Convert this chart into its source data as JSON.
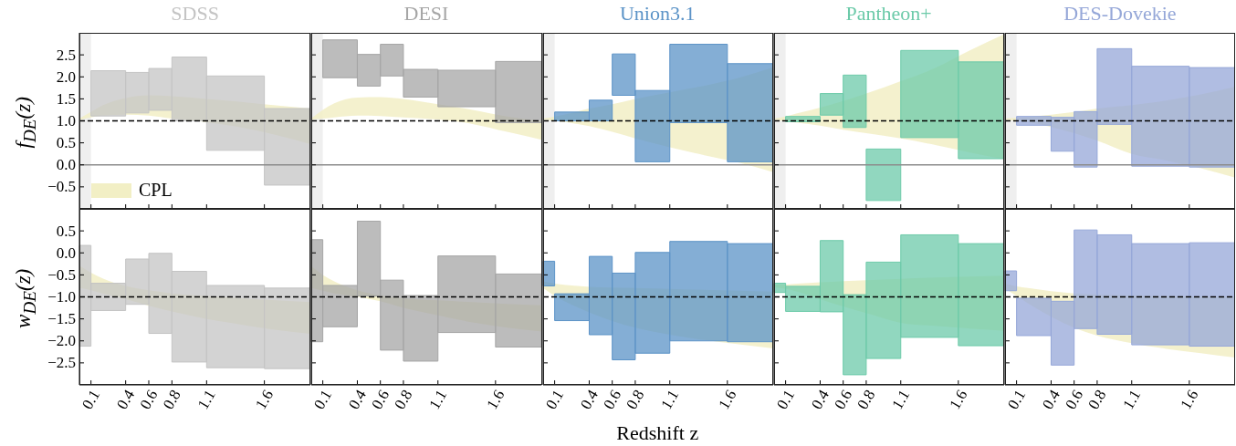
{
  "chart_data": [
    {
      "type": "histogram",
      "title": "SDSS",
      "ylabel": "f$_{DE}$(z)",
      "xlim": [
        0,
        2
      ],
      "xticks": [
        0.1,
        0.4,
        0.6,
        0.8,
        1.1,
        1.6
      ],
      "ylim": [
        -1,
        3
      ],
      "yticks": [
        {
          "value": -0.5,
          "label": "−0.5"
        },
        {
          "value": 0,
          "label": "0.0"
        },
        0.5,
        {
          "value": 1,
          "label": "1.0"
        },
        1.5,
        {
          "value": 2,
          "label": "2.0"
        },
        2.5
      ],
      "tick_labels": "y",
      "legend": "bottom left",
      "bands": [
        {
          "axis": "x",
          "from": 0,
          "to": 0.1,
          "color": "#efefef"
        }
      ],
      "ref_lines": [
        {
          "axis": "y",
          "value": 1,
          "color": "#000000",
          "line_style": "dashed"
        },
        {
          "axis": "y",
          "value": 0,
          "color": "#8c8c8c",
          "line_style": "solid"
        }
      ],
      "series": [
        {
          "type": "area",
          "name": "CPL",
          "color": "#f2efc5",
          "x": [
            0,
            0.1,
            0.2,
            0.4,
            0.6,
            0.8,
            1.1,
            1.4,
            1.7,
            2.0
          ],
          "values": [
            null,
            null,
            null,
            null,
            null,
            null,
            null,
            null,
            null,
            null
          ],
          "lower": [
            1.02,
            1.08,
            1.12,
            1.14,
            1.12,
            1.05,
            0.97,
            0.85,
            0.68,
            0.47
          ],
          "upper": [
            1.05,
            1.2,
            1.35,
            1.52,
            1.58,
            1.56,
            1.5,
            1.43,
            1.35,
            1.28
          ]
        },
        {
          "color": "#c4c4c4",
          "bins": [
            0.1,
            0.4,
            0.6,
            0.8,
            1.1,
            1.6,
            2.0
          ],
          "base": [
            1.11,
            1.18,
            1.24,
            1.0,
            0.33,
            -0.46
          ],
          "values": [
            1.03,
            0.92,
            0.95,
            1.45,
            1.69,
            1.74
          ]
        }
      ]
    },
    {
      "type": "histogram",
      "title": "DESI",
      "xlim": [
        0,
        2
      ],
      "xticks": [
        0.1,
        0.4,
        0.6,
        0.8,
        1.1,
        1.6
      ],
      "ylim": [
        -1,
        3
      ],
      "yticks": [
        -0.5,
        0,
        0.5,
        1,
        1.5,
        2,
        2.5
      ],
      "tick_labels": false,
      "bands": [
        {
          "axis": "x",
          "from": 0,
          "to": 0.1,
          "color": "#efefef"
        }
      ],
      "ref_lines": [
        {
          "axis": "y",
          "value": 1,
          "color": "#000000",
          "line_style": "dashed"
        },
        {
          "axis": "y",
          "value": 0,
          "color": "#8c8c8c",
          "line_style": "solid"
        }
      ],
      "series": [
        {
          "type": "area",
          "color": "#f2efc5",
          "x": [
            0,
            0.1,
            0.2,
            0.4,
            0.6,
            0.8,
            1.1,
            1.4,
            1.7,
            2.0
          ],
          "values": [
            null,
            null,
            null,
            null,
            null,
            null,
            null,
            null,
            null,
            null
          ],
          "lower": [
            1.03,
            1.05,
            1.08,
            1.12,
            1.11,
            1.08,
            1.03,
            0.93,
            0.75,
            0.57
          ],
          "upper": [
            1.05,
            1.25,
            1.4,
            1.53,
            1.54,
            1.5,
            1.38,
            1.25,
            1.1,
            1.0
          ]
        },
        {
          "color": "#a6a6a6",
          "bins": [
            0.1,
            0.4,
            0.6,
            0.8,
            1.1,
            1.6,
            2.0
          ],
          "base": [
            1.98,
            1.79,
            2.02,
            1.54,
            1.32,
            0.96
          ],
          "values": [
            0.86,
            0.72,
            0.72,
            0.63,
            0.83,
            1.39
          ]
        }
      ]
    },
    {
      "type": "histogram",
      "title": "Union3.1",
      "xlim": [
        0,
        2
      ],
      "xticks": [
        0.1,
        0.4,
        0.6,
        0.8,
        1.1,
        1.6
      ],
      "ylim": [
        -1,
        3
      ],
      "yticks": [
        -0.5,
        0,
        0.5,
        1,
        1.5,
        2,
        2.5
      ],
      "tick_labels": false,
      "bands": [
        {
          "axis": "x",
          "from": 0,
          "to": 0.1,
          "color": "#efefef"
        }
      ],
      "ref_lines": [
        {
          "axis": "y",
          "value": 1,
          "color": "#000000",
          "line_style": "dashed"
        },
        {
          "axis": "y",
          "value": 0,
          "color": "#8c8c8c",
          "line_style": "solid"
        }
      ],
      "series": [
        {
          "type": "area",
          "color": "#f2efc5",
          "x": [
            0,
            0.1,
            0.2,
            0.4,
            0.6,
            0.8,
            1.1,
            1.4,
            1.7,
            2.0
          ],
          "values": [
            null,
            null,
            null,
            null,
            null,
            null,
            null,
            null,
            null,
            null
          ],
          "lower": [
            1.03,
            1.0,
            0.97,
            0.88,
            0.75,
            0.6,
            0.4,
            0.22,
            0.05,
            -0.17
          ],
          "upper": [
            1.05,
            1.1,
            1.15,
            1.28,
            1.38,
            1.5,
            1.65,
            1.8,
            1.98,
            2.22
          ]
        },
        {
          "color": "#5b93c7",
          "bins": [
            0.1,
            0.4,
            0.6,
            0.8,
            1.1,
            1.6,
            2.0
          ],
          "base": [
            1.0,
            1.0,
            1.58,
            0.07,
            0.96,
            0.07
          ],
          "values": [
            0.2,
            0.47,
            0.94,
            1.62,
            1.78,
            2.23
          ]
        }
      ]
    },
    {
      "type": "histogram",
      "title": "Pantheon+",
      "xlim": [
        0,
        2
      ],
      "xticks": [
        0.1,
        0.4,
        0.6,
        0.8,
        1.1,
        1.6
      ],
      "ylim": [
        -1,
        3
      ],
      "yticks": [
        -0.5,
        0,
        0.5,
        1,
        1.5,
        2,
        2.5
      ],
      "tick_labels": false,
      "bands": [
        {
          "axis": "x",
          "from": 0,
          "to": 0.1,
          "color": "#efefef"
        }
      ],
      "ref_lines": [
        {
          "axis": "y",
          "value": 1,
          "color": "#000000",
          "line_style": "dashed"
        },
        {
          "axis": "y",
          "value": 0,
          "color": "#8c8c8c",
          "line_style": "solid"
        }
      ],
      "series": [
        {
          "type": "area",
          "color": "#f2efc5",
          "x": [
            0,
            0.1,
            0.2,
            0.4,
            0.6,
            0.8,
            1.1,
            1.4,
            1.7,
            2.0
          ],
          "values": [
            null,
            null,
            null,
            null,
            null,
            null,
            null,
            null,
            null,
            null
          ],
          "lower": [
            1.03,
            0.99,
            0.96,
            0.89,
            0.8,
            0.72,
            0.6,
            0.45,
            0.28,
            0.13
          ],
          "upper": [
            1.05,
            1.1,
            1.17,
            1.3,
            1.45,
            1.62,
            1.9,
            2.2,
            2.6,
            2.97
          ]
        },
        {
          "color": "#6ccaa9",
          "bins": [
            0.1,
            0.4,
            0.6,
            0.8,
            1.1,
            1.6,
            2.0
          ],
          "base": [
            0.98,
            1.13,
            0.85,
            -0.81,
            0.62,
            0.14
          ],
          "values": [
            0.12,
            0.49,
            1.19,
            1.17,
            1.98,
            2.2
          ]
        }
      ]
    },
    {
      "type": "histogram",
      "title": "DES-Dovekie",
      "xlim": [
        0,
        2
      ],
      "xticks": [
        0.1,
        0.4,
        0.6,
        0.8,
        1.1,
        1.6
      ],
      "ylim": [
        -1,
        3
      ],
      "yticks": [
        -0.5,
        0,
        0.5,
        1,
        1.5,
        2,
        2.5
      ],
      "tick_labels": false,
      "bands": [
        {
          "axis": "x",
          "from": 0,
          "to": 0.1,
          "color": "#efefef"
        }
      ],
      "ref_lines": [
        {
          "axis": "y",
          "value": 1,
          "color": "#000000",
          "line_style": "dashed"
        },
        {
          "axis": "y",
          "value": 0,
          "color": "#8c8c8c",
          "line_style": "solid"
        }
      ],
      "series": [
        {
          "type": "area",
          "color": "#f2efc5",
          "x": [
            0,
            0.1,
            0.2,
            0.4,
            0.6,
            0.8,
            1.1,
            1.4,
            1.7,
            2.0
          ],
          "values": [
            null,
            null,
            null,
            null,
            null,
            null,
            null,
            null,
            null,
            null
          ],
          "lower": [
            1.03,
            1.0,
            0.97,
            0.86,
            0.72,
            0.55,
            0.25,
            0.1,
            -0.08,
            -0.29
          ],
          "upper": [
            1.05,
            1.07,
            1.09,
            1.14,
            1.2,
            1.28,
            1.36,
            1.46,
            1.6,
            1.78
          ]
        },
        {
          "color": "#95a7d8",
          "bins": [
            0.1,
            0.4,
            0.6,
            0.8,
            1.1,
            1.6,
            2.0
          ],
          "base": [
            0.9,
            0.31,
            -0.05,
            0.92,
            -0.03,
            -0.05
          ],
          "values": [
            0.2,
            0.77,
            1.26,
            1.72,
            2.27,
            2.26
          ]
        }
      ]
    },
    {
      "type": "histogram",
      "ylabel": "w$_{DE}$(z)",
      "xlim": [
        0,
        2
      ],
      "xticks": [
        0.1,
        0.4,
        0.6,
        0.8,
        1.1,
        1.6
      ],
      "ylim": [
        -3,
        1
      ],
      "yticks": [
        {
          "value": -2.5,
          "label": "−2.5"
        },
        {
          "value": -2,
          "label": "−2.0"
        },
        {
          "value": -1.5,
          "label": "−1.5"
        },
        {
          "value": -1,
          "label": "−1.0"
        },
        {
          "value": -0.5,
          "label": "−0.5"
        },
        {
          "value": 0,
          "label": "0.0"
        },
        0.5
      ],
      "ref_lines": [
        {
          "axis": "y",
          "value": -1,
          "color": "#000000",
          "line_style": "dashed"
        }
      ],
      "series": [
        {
          "type": "area",
          "color": "#f2efc5",
          "x": [
            0,
            0.1,
            0.2,
            0.4,
            0.6,
            0.8,
            1.1,
            1.4,
            1.7,
            2.0
          ],
          "values": [
            null,
            null,
            null,
            null,
            null,
            null,
            null,
            null,
            null,
            null
          ],
          "lower": [
            -0.8,
            -0.85,
            -0.92,
            -1.05,
            -1.2,
            -1.33,
            -1.5,
            -1.63,
            -1.75,
            -1.84
          ],
          "upper": [
            -0.29,
            -0.45,
            -0.58,
            -0.75,
            -0.85,
            -0.92,
            -0.98,
            -1.03,
            -1.08,
            -1.12
          ]
        },
        {
          "color": "#c4c4c4",
          "bins": [
            0,
            0.1,
            0.4,
            0.6,
            0.8,
            1.1,
            1.6,
            2.0
          ],
          "base": [
            -2.12,
            -1.31,
            -1.17,
            -1.83,
            -2.48,
            -2.61,
            -2.63
          ],
          "values": [
            2.29,
            0.62,
            1.03,
            1.82,
            2.06,
            1.87,
            1.83
          ]
        }
      ]
    },
    {
      "type": "histogram",
      "xlim": [
        0,
        2
      ],
      "xticks": [
        0.1,
        0.4,
        0.6,
        0.8,
        1.1,
        1.6
      ],
      "ylim": [
        -3,
        1
      ],
      "yticks": [
        -2.5,
        -2,
        -1.5,
        -1,
        -0.5,
        0,
        0.5
      ],
      "tick_labels": "x",
      "ref_lines": [
        {
          "axis": "y",
          "value": -1,
          "color": "#000000",
          "line_style": "dashed"
        }
      ],
      "series": [
        {
          "type": "area",
          "color": "#f2efc5",
          "x": [
            0,
            0.1,
            0.2,
            0.4,
            0.6,
            0.8,
            1.1,
            1.4,
            1.7,
            2.0
          ],
          "values": [
            null,
            null,
            null,
            null,
            null,
            null,
            null,
            null,
            null,
            null
          ],
          "lower": [
            -0.8,
            -0.86,
            -0.92,
            -1.0,
            -1.1,
            -1.25,
            -1.42,
            -1.58,
            -1.7,
            -1.79
          ],
          "upper": [
            -0.3,
            -0.5,
            -0.65,
            -0.85,
            -0.97,
            -1.03,
            -1.08,
            -1.12,
            -1.16,
            -1.19
          ]
        },
        {
          "color": "#a6a6a6",
          "bins": [
            0,
            0.1,
            0.4,
            0.6,
            0.8,
            1.1,
            1.6,
            2.0
          ],
          "base": [
            -2.02,
            -1.68,
            -0.98,
            -2.21,
            -2.46,
            -1.81,
            -2.14
          ],
          "values": [
            2.32,
            0.94,
            1.7,
            1.59,
            1.49,
            1.74,
            1.66
          ]
        }
      ]
    },
    {
      "type": "histogram",
      "xlabel": "Redshift z",
      "xlim": [
        0,
        2
      ],
      "xticks": [
        0.1,
        0.4,
        0.6,
        0.8,
        1.1,
        1.6
      ],
      "ylim": [
        -3,
        1
      ],
      "yticks": [
        -2.5,
        -2,
        -1.5,
        -1,
        -0.5,
        0,
        0.5
      ],
      "tick_labels": "x",
      "ref_lines": [
        {
          "axis": "y",
          "value": -1,
          "color": "#000000",
          "line_style": "dashed"
        }
      ],
      "series": [
        {
          "type": "area",
          "color": "#f2efc5",
          "x": [
            0,
            0.1,
            0.2,
            0.4,
            0.6,
            0.8,
            1.1,
            1.4,
            1.7,
            2.0
          ],
          "values": [
            null,
            null,
            null,
            null,
            null,
            null,
            null,
            null,
            null,
            null
          ],
          "lower": [
            -0.8,
            -0.98,
            -1.12,
            -1.35,
            -1.55,
            -1.7,
            -1.86,
            -1.98,
            -2.08,
            -2.17
          ],
          "upper": [
            -0.65,
            -0.7,
            -0.73,
            -0.77,
            -0.79,
            -0.8,
            -0.82,
            -0.84,
            -0.86,
            -0.88
          ]
        },
        {
          "color": "#5b93c7",
          "bins": [
            0,
            0.1,
            0.4,
            0.6,
            0.8,
            1.1,
            1.6,
            2.0
          ],
          "base": [
            -0.75,
            -1.54,
            -1.86,
            -2.43,
            -2.28,
            -2.0,
            -2.02
          ],
          "values": [
            0.56,
            0.61,
            1.78,
            1.97,
            2.29,
            2.26,
            2.23
          ]
        }
      ]
    },
    {
      "type": "histogram",
      "xlim": [
        0,
        2
      ],
      "xticks": [
        0.1,
        0.4,
        0.6,
        0.8,
        1.1,
        1.6
      ],
      "ylim": [
        -3,
        1
      ],
      "yticks": [
        -2.5,
        -2,
        -1.5,
        -1,
        -0.5,
        0,
        0.5
      ],
      "tick_labels": "x",
      "ref_lines": [
        {
          "axis": "y",
          "value": -1,
          "color": "#000000",
          "line_style": "dashed"
        }
      ],
      "series": [
        {
          "type": "area",
          "color": "#f2efc5",
          "x": [
            0,
            0.1,
            0.2,
            0.4,
            0.6,
            0.8,
            1.1,
            1.4,
            1.7,
            2.0
          ],
          "values": [
            null,
            null,
            null,
            null,
            null,
            null,
            null,
            null,
            null,
            null
          ],
          "lower": [
            -0.78,
            -0.82,
            -0.88,
            -1.05,
            -1.22,
            -1.37,
            -1.59,
            -1.66,
            -1.72,
            -1.77
          ],
          "upper": [
            -0.72,
            -0.72,
            -0.7,
            -0.67,
            -0.64,
            -0.62,
            -0.59,
            -0.56,
            -0.54,
            -0.52
          ]
        },
        {
          "color": "#6ccaa9",
          "bins": [
            0,
            0.1,
            0.4,
            0.6,
            0.8,
            1.1,
            1.6,
            2.0
          ],
          "base": [
            -0.9,
            -1.33,
            -1.34,
            -2.77,
            -2.4,
            -1.92,
            -2.11
          ],
          "values": [
            0.21,
            0.57,
            1.62,
            1.82,
            2.19,
            2.33,
            2.32
          ]
        }
      ]
    },
    {
      "type": "histogram",
      "xlim": [
        0,
        2
      ],
      "xticks": [
        0.1,
        0.4,
        0.6,
        0.8,
        1.1,
        1.6
      ],
      "ylim": [
        -3,
        1
      ],
      "yticks": [
        -2.5,
        -2,
        -1.5,
        -1,
        -0.5,
        0,
        0.5
      ],
      "tick_labels": "x",
      "ref_lines": [
        {
          "axis": "y",
          "value": -1,
          "color": "#000000",
          "line_style": "dashed"
        }
      ],
      "series": [
        {
          "type": "area",
          "color": "#f2efc5",
          "x": [
            0,
            0.1,
            0.2,
            0.4,
            0.6,
            0.8,
            1.1,
            1.4,
            1.7,
            2.0
          ],
          "values": [
            null,
            null,
            null,
            null,
            null,
            null,
            null,
            null,
            null,
            null
          ],
          "lower": [
            -0.82,
            -0.98,
            -1.15,
            -1.45,
            -1.7,
            -1.88,
            -2.05,
            -2.18,
            -2.28,
            -2.38
          ],
          "upper": [
            -0.7,
            -0.76,
            -0.8,
            -0.87,
            -0.92,
            -0.95,
            -0.97,
            -0.98,
            -0.99,
            -1.0
          ]
        },
        {
          "color": "#95a7d8",
          "bins": [
            0,
            0.1,
            0.4,
            0.6,
            0.8,
            1.1,
            1.6,
            2.0
          ],
          "base": [
            -0.86,
            -1.88,
            -2.55,
            -1.72,
            -1.85,
            -2.09,
            -2.12
          ],
          "values": [
            0.45,
            0.85,
            1.45,
            2.24,
            2.26,
            2.3,
            2.35
          ]
        }
      ]
    }
  ]
}
